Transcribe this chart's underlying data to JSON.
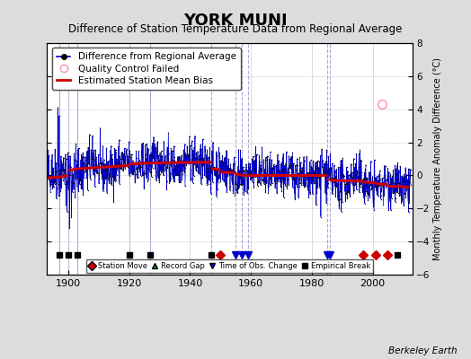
{
  "title": "YORK MUNI",
  "subtitle": "Difference of Station Temperature Data from Regional Average",
  "ylabel_right": "Monthly Temperature Anomaly Difference (°C)",
  "credit": "Berkeley Earth",
  "xlim": [
    1893,
    2013
  ],
  "ylim": [
    -6,
    8
  ],
  "yticks": [
    -6,
    -4,
    -2,
    0,
    2,
    4,
    6,
    8
  ],
  "xticks": [
    1900,
    1920,
    1940,
    1960,
    1980,
    2000
  ],
  "bg_color": "#dcdcdc",
  "plot_bg_color": "#ffffff",
  "line_color": "#0000cc",
  "bias_color": "#cc0000",
  "qc_color": "#ff99cc",
  "station_move_color": "#cc0000",
  "obs_change_color": "#0000cc",
  "record_gap_color": "#008800",
  "empirical_break_color": "#000000",
  "seed": 42,
  "x_start": 1893.0,
  "x_end": 2012.5,
  "station_moves": [
    1950,
    1997,
    2001,
    2005
  ],
  "obs_changes": [
    1955,
    1957,
    1959,
    1985,
    1986
  ],
  "empirical_breaks": [
    1897,
    1900,
    1903,
    1920,
    1927,
    1947,
    2008
  ],
  "bias_segments": [
    {
      "x": [
        1893,
        1897
      ],
      "y": [
        -0.15,
        -0.1
      ]
    },
    {
      "x": [
        1897,
        1900
      ],
      "y": [
        -0.1,
        0.0
      ]
    },
    {
      "x": [
        1900,
        1903
      ],
      "y": [
        0.3,
        0.4
      ]
    },
    {
      "x": [
        1903,
        1920
      ],
      "y": [
        0.4,
        0.6
      ]
    },
    {
      "x": [
        1920,
        1927
      ],
      "y": [
        0.7,
        0.75
      ]
    },
    {
      "x": [
        1927,
        1947
      ],
      "y": [
        0.75,
        0.8
      ]
    },
    {
      "x": [
        1947,
        1950
      ],
      "y": [
        0.4,
        0.35
      ]
    },
    {
      "x": [
        1950,
        1955
      ],
      "y": [
        0.2,
        0.15
      ]
    },
    {
      "x": [
        1955,
        1957
      ],
      "y": [
        0.1,
        0.1
      ]
    },
    {
      "x": [
        1957,
        1959
      ],
      "y": [
        0.05,
        0.05
      ]
    },
    {
      "x": [
        1959,
        1985
      ],
      "y": [
        0.0,
        0.0
      ]
    },
    {
      "x": [
        1985,
        1986
      ],
      "y": [
        -0.2,
        -0.25
      ]
    },
    {
      "x": [
        1986,
        1997
      ],
      "y": [
        -0.3,
        -0.35
      ]
    },
    {
      "x": [
        1997,
        2001
      ],
      "y": [
        -0.4,
        -0.45
      ]
    },
    {
      "x": [
        2001,
        2005
      ],
      "y": [
        -0.5,
        -0.55
      ]
    },
    {
      "x": [
        2005,
        2012
      ],
      "y": [
        -0.65,
        -0.7
      ]
    }
  ],
  "qc_failed_x": 2003.0,
  "qc_failed_y": 4.3,
  "vertical_lines_solid": [
    1897,
    1900,
    1903,
    1920,
    1927
  ],
  "vertical_lines_dotted": [
    1947,
    1955,
    1957,
    1959,
    1985,
    1986
  ],
  "vertical_line_color": "#aaaadd",
  "grid_color": "#cccccc",
  "marker_y": -4.8
}
